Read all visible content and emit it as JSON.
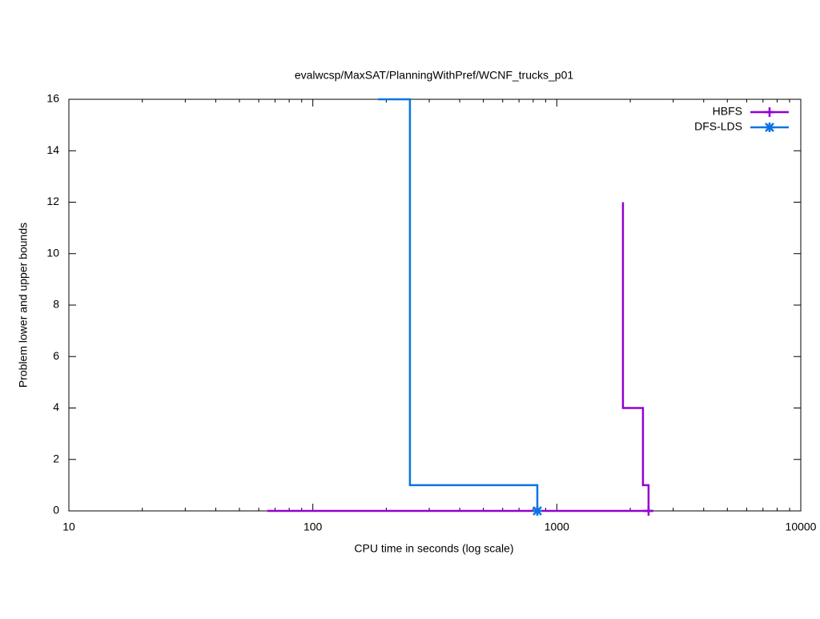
{
  "chart_data": {
    "type": "line",
    "title": "evalwcsp/MaxSAT/PlanningWithPref/WCNF_trucks_p01",
    "x_label": "CPU time in seconds (log scale)",
    "y_label": "Problem lower and upper bounds",
    "x_scale": "log",
    "xlim": [
      10,
      10000
    ],
    "xticks": [
      10,
      100,
      1000,
      10000
    ],
    "ylim": [
      0,
      16
    ],
    "yticks": [
      0,
      2,
      4,
      6,
      8,
      10,
      12,
      14,
      16
    ],
    "legend": "top-right",
    "series": [
      {
        "name": "HBFS",
        "color": "#9400d3",
        "marker": "plus",
        "x": [
          65,
          2470,
          null,
          1867,
          1867,
          2255,
          2255,
          2377,
          2377
        ],
        "values": [
          0,
          0,
          null,
          12,
          4,
          4,
          1,
          1,
          0
        ]
      },
      {
        "name": "DFS-LDS",
        "color": "#0a74e2",
        "marker": "star",
        "x": [
          185,
          250,
          250,
          832,
          832
        ],
        "values": [
          16,
          16,
          1,
          1,
          0
        ]
      }
    ]
  }
}
